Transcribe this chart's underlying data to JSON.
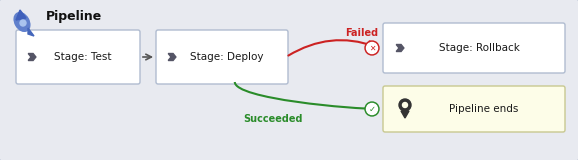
{
  "title": "Pipeline",
  "bg_color": "#e8eaf0",
  "outer_bg": "#ffffff",
  "box_fill": "#ffffff",
  "box_edge": "#b0bcd0",
  "pipeline_ends_fill": "#fdfde8",
  "pipeline_ends_edge": "#c8c890",
  "stage_test_label": "Stage: Test",
  "stage_deploy_label": "Stage: Deploy",
  "stage_rollback_label": "Stage: Rollback",
  "pipeline_ends_label": "Pipeline ends",
  "failed_label": "Failed",
  "succeeded_label": "Succeeded",
  "arrow_fail_color": "#cc2222",
  "arrow_success_color": "#2a8c2a",
  "title_color": "#111111",
  "chevron_color": "#555566",
  "border_color": "#b0bcd0"
}
